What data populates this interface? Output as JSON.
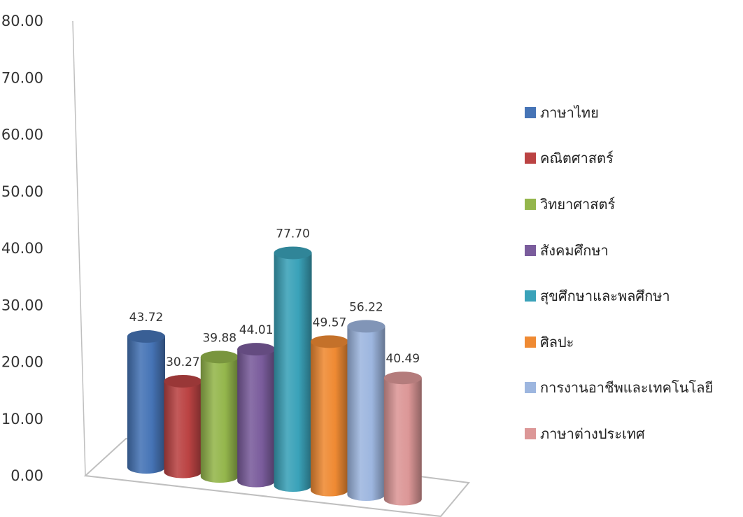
{
  "chart_data": {
    "type": "bar",
    "style": "3d-cylinder",
    "title": "",
    "xlabel": "",
    "ylabel": "",
    "ylim": [
      0,
      80
    ],
    "yticks": [
      "0.00",
      "10.00",
      "20.00",
      "30.00",
      "40.00",
      "50.00",
      "60.00",
      "70.00",
      "80.00"
    ],
    "grid": false,
    "legend_position": "right",
    "categories": [
      "ภาษาไทย",
      "คณิตศาสตร์",
      "วิทยาศาสตร์",
      "สังคมศึกษา",
      "สุขศึกษาและพลศึกษา",
      "ศิลปะ",
      "การงานอาชีพและเทคโนโลยี",
      "ภาษาต่างประเทศ"
    ],
    "values": [
      43.72,
      30.27,
      39.88,
      44.01,
      77.7,
      49.57,
      56.22,
      40.49
    ],
    "value_labels": [
      "43.72",
      "30.27",
      "39.88",
      "44.01",
      "77.70",
      "49.57",
      "56.22",
      "40.49"
    ],
    "colors": [
      "#4674b6",
      "#bb4343",
      "#94b64c",
      "#7a5c9c",
      "#3aa2b9",
      "#ef8a33",
      "#9db6df",
      "#dc9797"
    ]
  }
}
